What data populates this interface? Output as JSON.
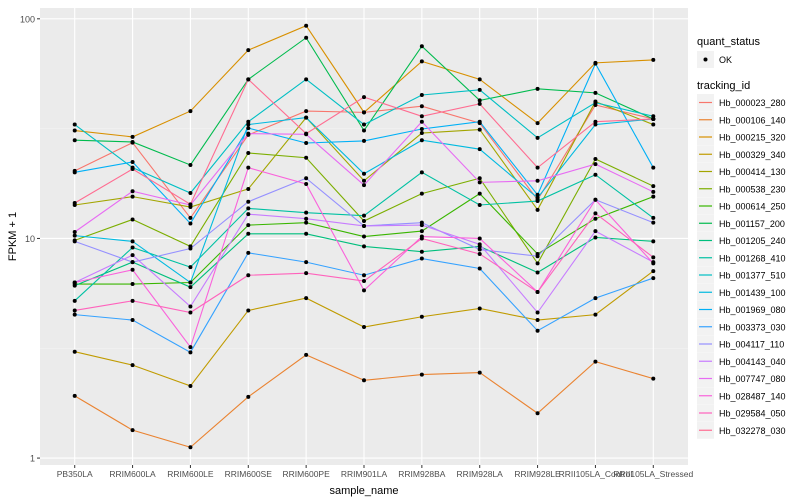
{
  "chart_data": {
    "type": "line",
    "title": "",
    "xlabel": "sample_name",
    "ylabel": "FPKM + 1",
    "y_scale": "log10",
    "ylim": [
      0.93,
      112
    ],
    "y_ticks": [
      1,
      10,
      100
    ],
    "y_tick_labels": [
      "1",
      "10",
      "100"
    ],
    "grid": true,
    "legend_placement": "right",
    "categories": [
      "PB350LA",
      "RRIM600LA",
      "RRIM600LE",
      "RRIM600SE",
      "RRIM600PE",
      "RRIM901LA",
      "RRIM928BA",
      "RRIM928LA",
      "RRIM928LE",
      "RRII105LA_Control",
      "RRII105LA_Stressed"
    ],
    "shape_legend": {
      "title": "quant_status",
      "items": [
        "OK"
      ]
    },
    "color_legend_title": "tracking_id",
    "series": [
      {
        "name": "Hb_000023_280",
        "color": "#F8766D",
        "values": [
          20.3,
          27.3,
          12.4,
          29.6,
          38,
          37.5,
          40,
          33.5,
          15,
          40.5,
          35
        ]
      },
      {
        "name": "Hb_000106_140",
        "color": "#EA8331",
        "values": [
          1.92,
          1.34,
          1.12,
          1.9,
          2.95,
          2.26,
          2.4,
          2.45,
          1.6,
          2.75,
          2.3
        ]
      },
      {
        "name": "Hb_000215_320",
        "color": "#D89000",
        "values": [
          31,
          29,
          38,
          72,
          93,
          37.5,
          64,
          53,
          33.5,
          63,
          65
        ]
      },
      {
        "name": "Hb_000329_340",
        "color": "#C09B00",
        "values": [
          3.05,
          2.65,
          2.13,
          4.7,
          5.35,
          3.95,
          4.4,
          4.8,
          4.25,
          4.5,
          7.1
        ]
      },
      {
        "name": "Hb_000414_130",
        "color": "#A3A500",
        "values": [
          14.2,
          15.5,
          13.9,
          16.8,
          35.5,
          18.3,
          30.2,
          31.3,
          13.5,
          42,
          33
        ]
      },
      {
        "name": "Hb_000538_230",
        "color": "#7CAE00",
        "values": [
          9.8,
          12.2,
          9.2,
          24.5,
          23.3,
          12,
          16,
          18.8,
          7.7,
          23,
          17.3
        ]
      },
      {
        "name": "Hb_000614_250",
        "color": "#39B600",
        "values": [
          6.2,
          6.2,
          6.3,
          11.5,
          11.8,
          10.2,
          10.8,
          16,
          8.5,
          12.3,
          15.5
        ]
      },
      {
        "name": "Hb_001157_200",
        "color": "#00BB4E",
        "values": [
          28,
          27.5,
          21.6,
          53,
          82,
          31,
          75,
          42.5,
          48,
          46,
          35
        ]
      },
      {
        "name": "Hb_001205_240",
        "color": "#00BF7D",
        "values": [
          6.1,
          7.8,
          6.0,
          10.5,
          10.5,
          9.2,
          8.7,
          9.2,
          7.0,
          10.1,
          9.7
        ]
      },
      {
        "name": "Hb_001268_410",
        "color": "#00C1A3",
        "values": [
          5.2,
          9.1,
          7.4,
          13.7,
          13.1,
          12.7,
          20,
          14.2,
          14.8,
          19.5,
          12.4
        ]
      },
      {
        "name": "Hb_001377_510",
        "color": "#00BFC4",
        "values": [
          33,
          21,
          16.1,
          34,
          53,
          33,
          45,
          47.5,
          28.7,
          41.5,
          36
        ]
      },
      {
        "name": "Hb_001439_100",
        "color": "#00BAE0",
        "values": [
          10.3,
          9.7,
          6.3,
          33,
          35.5,
          19.7,
          28,
          25.5,
          15.3,
          33,
          35
        ]
      },
      {
        "name": "Hb_001969_080",
        "color": "#00B0F6",
        "values": [
          20,
          22.3,
          11.7,
          31.8,
          27.2,
          27.8,
          31.5,
          34,
          15.8,
          62.5,
          21
        ]
      },
      {
        "name": "Hb_003373_030",
        "color": "#35A2FF",
        "values": [
          4.5,
          4.25,
          3.03,
          8.6,
          7.8,
          6.8,
          8.1,
          7.3,
          3.8,
          5.35,
          6.6
        ]
      },
      {
        "name": "Hb_004117_110",
        "color": "#9590FF",
        "values": [
          9.7,
          7.8,
          9.0,
          14.7,
          18.8,
          11.4,
          11.8,
          8.9,
          8.3,
          15,
          11.8
        ]
      },
      {
        "name": "Hb_004143_040",
        "color": "#C77CFF",
        "values": [
          6.3,
          8.4,
          4.9,
          12.9,
          12.3,
          11.4,
          11.5,
          9.4,
          4.6,
          10.8,
          7.8
        ]
      },
      {
        "name": "Hb_007747_080",
        "color": "#E76BF3",
        "values": [
          10.7,
          16.4,
          14.2,
          30,
          29.8,
          17.5,
          34,
          18,
          18.3,
          21.8,
          16.3
        ]
      },
      {
        "name": "Hb_028487_140",
        "color": "#FA62DB",
        "values": [
          6.3,
          7.2,
          3.2,
          21,
          17.7,
          5.8,
          10.2,
          10,
          5.7,
          15,
          7.7
        ]
      },
      {
        "name": "Hb_029584_050",
        "color": "#FF62BC",
        "values": [
          4.7,
          5.2,
          4.6,
          6.8,
          6.95,
          6.4,
          10,
          8.5,
          5.7,
          13,
          8.2
        ]
      },
      {
        "name": "Hb_032278_030",
        "color": "#FF6C91",
        "values": [
          14.5,
          20.7,
          14.3,
          53,
          30,
          44,
          36,
          41,
          21,
          34,
          35
        ]
      }
    ]
  }
}
